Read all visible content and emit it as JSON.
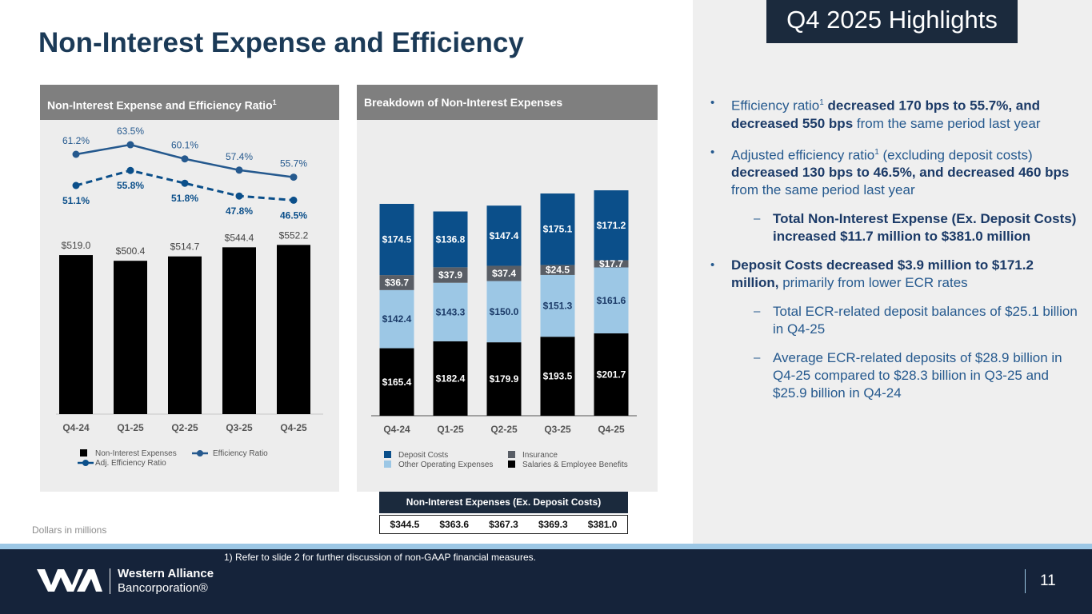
{
  "title": "Non-Interest Expense and Efficiency",
  "left_panel": {
    "heading": "Non-Interest Expense and Efficiency Ratio",
    "heading_sup": "1"
  },
  "mid_panel": {
    "heading": "Breakdown of Non-Interest Expenses"
  },
  "highlights": {
    "title": "Q4 2025 Highlights",
    "bullets": [
      {
        "pre": "Efficiency ratio",
        "sup": "1",
        "bold": " decreased 170 bps to 55.7%, and decreased 550 bps",
        "post": " from the same period last year"
      },
      {
        "pre": "Adjusted efficiency ratio",
        "sup": "1",
        "mid": " (excluding deposit costs) ",
        "bold": "decreased 130 bps to 46.5%, and decreased 460 bps",
        "post": " from the same period last year"
      },
      {
        "bold": "Total Non-Interest Expense (Ex. Deposit Costs) increased $11.7 million to $381.0 million"
      },
      {
        "bold": "Deposit Costs decreased $3.9 million to $171.2 million,",
        "post": " primarily from lower ECR rates"
      },
      {
        "text": "Total ECR-related deposit balances of $25.1 billion in Q4-25"
      },
      {
        "text": "Average ECR-related deposits of $28.9 billion in Q4-25 compared to $28.3 billion in Q3-25 and $25.9 billion in Q4-24"
      }
    ],
    "bullet_mark": "•",
    "dash_mark": "–"
  },
  "chart_data": [
    {
      "type": "bar",
      "title": "Non-Interest Expense and Efficiency Ratio",
      "categories": [
        "Q4-24",
        "Q1-25",
        "Q2-25",
        "Q3-25",
        "Q4-25"
      ],
      "series": [
        {
          "name": "Non-Interest Expenses",
          "type": "bar",
          "values": [
            519.0,
            500.4,
            514.7,
            544.4,
            552.2
          ],
          "labels": [
            "$519.0",
            "$500.4",
            "$514.7",
            "$544.4",
            "$552.2"
          ],
          "color": "#000000"
        },
        {
          "name": "Efficiency Ratio",
          "type": "line",
          "values": [
            61.2,
            63.5,
            60.1,
            57.4,
            55.7
          ],
          "labels": [
            "61.2%",
            "63.5%",
            "60.1%",
            "57.4%",
            "55.7%"
          ],
          "color": "#25598e"
        },
        {
          "name": "Adj. Efficiency Ratio",
          "type": "line",
          "style": "dashed",
          "values": [
            51.1,
            55.8,
            51.8,
            47.8,
            46.5
          ],
          "labels": [
            "51.1%",
            "55.8%",
            "51.8%",
            "47.8%",
            "46.5%"
          ],
          "color": "#0b4f8a"
        }
      ],
      "legend": [
        "Non-Interest Expenses",
        "Efficiency Ratio",
        "Adj. Efficiency Ratio"
      ]
    },
    {
      "type": "bar",
      "stacked": true,
      "title": "Breakdown of Non-Interest Expenses",
      "categories": [
        "Q4-24",
        "Q1-25",
        "Q2-25",
        "Q3-25",
        "Q4-25"
      ],
      "series": [
        {
          "name": "Salaries & Employee Benefits",
          "values": [
            165.4,
            182.4,
            179.9,
            193.5,
            201.7
          ],
          "labels": [
            "$165.4",
            "$182.4",
            "$179.9",
            "$193.5",
            "$201.7"
          ],
          "color": "#000000",
          "text": "#ffffff"
        },
        {
          "name": "Other Operating Expenses",
          "values": [
            142.4,
            143.3,
            150.0,
            151.3,
            161.6
          ],
          "labels": [
            "$142.4",
            "$143.3",
            "$150.0",
            "$151.3",
            "$161.6"
          ],
          "color": "#9cc7e5",
          "text": "#1b3a67"
        },
        {
          "name": "Insurance",
          "values": [
            36.7,
            37.9,
            37.4,
            24.5,
            17.7
          ],
          "labels": [
            "$36.7",
            "$37.9",
            "$37.4",
            "$24.5",
            "$17.7"
          ],
          "color": "#595e66",
          "text": "#ffffff"
        },
        {
          "name": "Deposit Costs",
          "values": [
            174.5,
            136.8,
            147.4,
            175.1,
            171.2
          ],
          "labels": [
            "$174.5",
            "$136.8",
            "$147.4",
            "$175.1",
            "$171.2"
          ],
          "color": "#0b4f8a",
          "text": "#ffffff"
        }
      ],
      "legend": [
        "Deposit Costs",
        "Insurance",
        "Other Operating Expenses",
        "Salaries & Employee Benefits"
      ]
    }
  ],
  "ex_deposit": {
    "heading": "Non-Interest Expenses (Ex. Deposit Costs)",
    "values": [
      "$344.5",
      "$363.6",
      "$367.3",
      "$369.3",
      "$381.0"
    ]
  },
  "notes": {
    "units": "Dollars in millions",
    "footnote": "1)    Refer to slide 2 for further discussion of non-GAAP financial measures."
  },
  "footer": {
    "brand_line1": "Western Alliance",
    "brand_line2": "Bancorporation®",
    "page_number": "11"
  }
}
